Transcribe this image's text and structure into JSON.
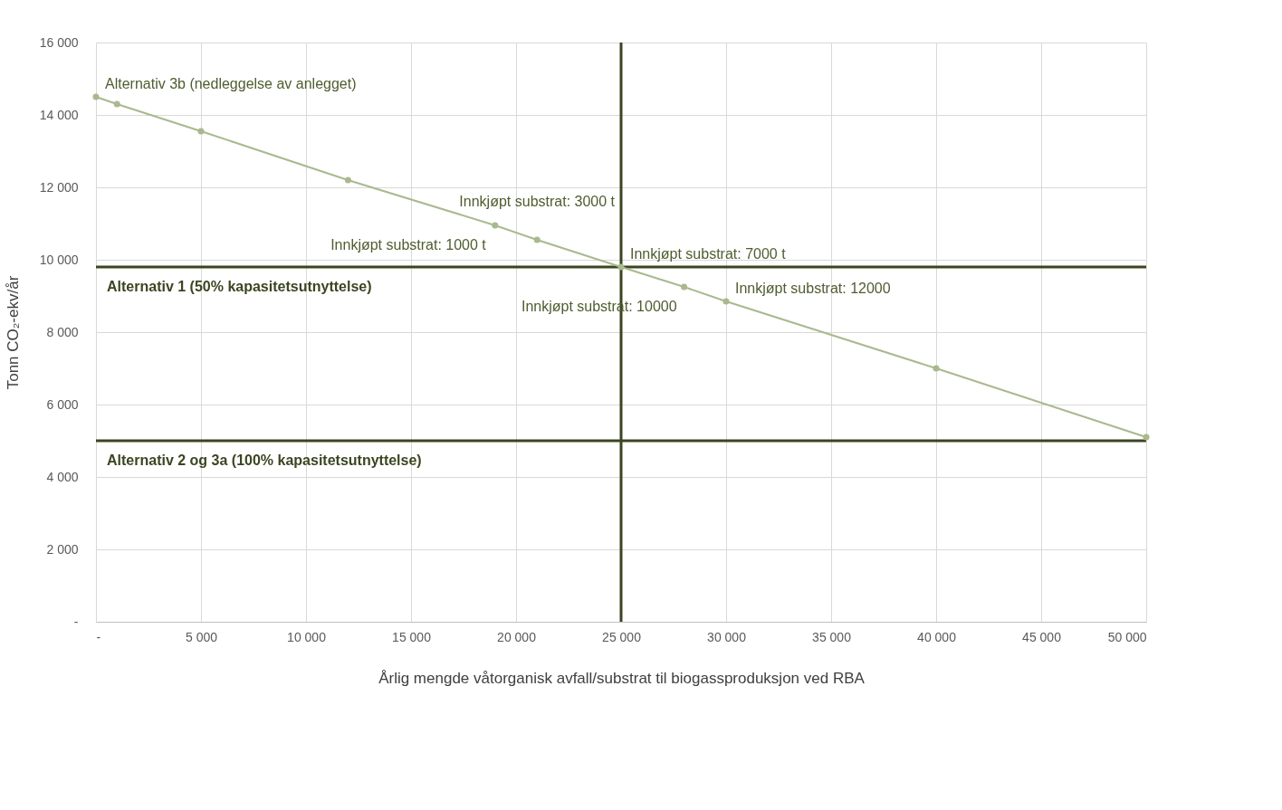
{
  "chart_data": {
    "type": "line",
    "xlabel": "Årlig mengde våtorganisk avfall/substrat til biogassproduksjon  ved RBA",
    "ylabel": "Tonn CO₂-ekv/år",
    "x": [
      0,
      1000,
      5000,
      12000,
      19000,
      21000,
      25000,
      28000,
      30000,
      40000,
      50000
    ],
    "series": [
      {
        "color": "#a9b98f",
        "values": [
          14500,
          14300,
          13550,
          12200,
          10950,
          10550,
          9800,
          9250,
          8850,
          7000,
          5100
        ]
      }
    ],
    "xlim": [
      0,
      50000
    ],
    "ylim": [
      0,
      16000
    ],
    "xticks": [
      {
        "value": 0,
        "label": "-"
      },
      {
        "value": 5000,
        "label": "5 000"
      },
      {
        "value": 10000,
        "label": "10 000"
      },
      {
        "value": 15000,
        "label": "15 000"
      },
      {
        "value": 20000,
        "label": "20 000"
      },
      {
        "value": 25000,
        "label": "25 000"
      },
      {
        "value": 30000,
        "label": "30 000"
      },
      {
        "value": 35000,
        "label": "35 000"
      },
      {
        "value": 40000,
        "label": "40 000"
      },
      {
        "value": 45000,
        "label": "45 000"
      },
      {
        "value": 50000,
        "label": "50 000"
      }
    ],
    "yticks": [
      {
        "value": 0,
        "label": "-"
      },
      {
        "value": 2000,
        "label": "2 000"
      },
      {
        "value": 4000,
        "label": "4 000"
      },
      {
        "value": 6000,
        "label": "6 000"
      },
      {
        "value": 8000,
        "label": "8 000"
      },
      {
        "value": 10000,
        "label": "10 000"
      },
      {
        "value": 12000,
        "label": "12 000"
      },
      {
        "value": 14000,
        "label": "14 000"
      },
      {
        "value": 16000,
        "label": "16 000"
      }
    ],
    "grid": true,
    "marker": "circle",
    "line_style": "solid",
    "ref_lines": [
      {
        "axis": "y",
        "value": 9800,
        "label": "Alternativ 1 (50% kapasitetsutnyttelse)",
        "color": "#3b4520"
      },
      {
        "axis": "y",
        "value": 5000,
        "label": "Alternativ 2 og 3a (100% kapasitetsutnyttelse)",
        "color": "#3b4520"
      },
      {
        "axis": "x",
        "value": 25000,
        "color": "#3b4520"
      }
    ],
    "annotations": [
      {
        "text": "Alternativ 3b (nedleggelse av anlegget)",
        "x": 0,
        "y": 14500
      },
      {
        "text": "Innkjøpt substrat: 1000 t",
        "x": 19000,
        "y": 10950
      },
      {
        "text": "Innkjøpt substrat: 3000 t",
        "x": 21000,
        "y": 10550
      },
      {
        "text": "Innkjøpt substrat: 7000 t",
        "x": 25000,
        "y": 9800
      },
      {
        "text": "Innkjøpt substrat: 12000",
        "x": 30000,
        "y": 8850
      },
      {
        "text": "Innkjøpt substrat: 10000",
        "x": 28000,
        "y": 9250
      }
    ]
  }
}
